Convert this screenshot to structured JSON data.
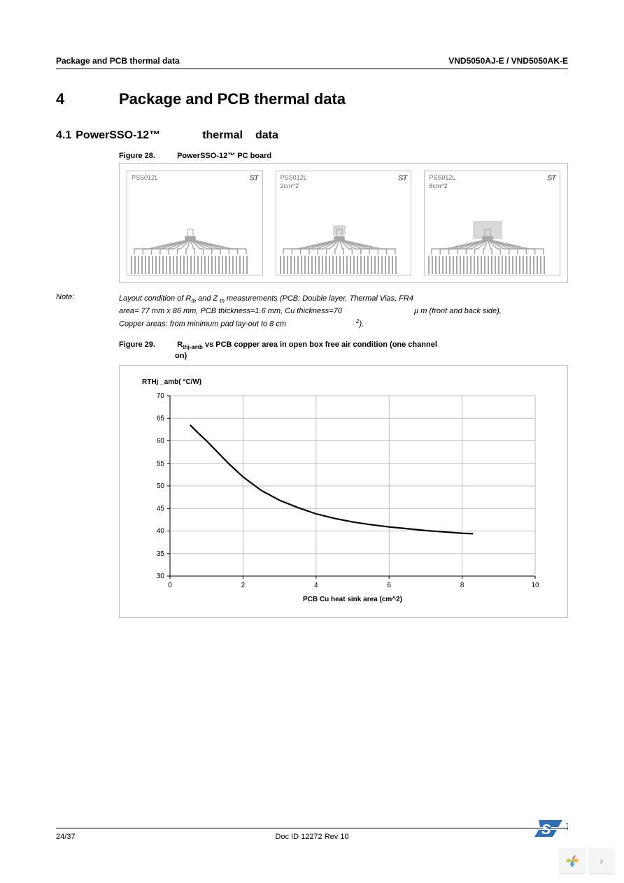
{
  "header": {
    "left": "Package and PCB thermal data",
    "right": "VND5050AJ-E / VND5050AK-E"
  },
  "section": {
    "num": "4",
    "title": "Package and PCB thermal data"
  },
  "subsection": {
    "num": "4.1",
    "part_a": "PowerSSO-12™",
    "part_b": "thermal",
    "part_c": "data"
  },
  "figure28": {
    "label_num": "Figure 28.",
    "label_title": "PowerSSO-12™ PC board",
    "boards": [
      {
        "name": "PSS012L",
        "area": "",
        "st": "ST",
        "pad_w": 0
      },
      {
        "name": "PSS012L",
        "area": "2cm^2",
        "st": "ST",
        "pad_w": 18
      },
      {
        "name": "PSS012L",
        "area": "8cm^2",
        "st": "ST",
        "pad_w": 42
      }
    ],
    "colors": {
      "border": "#bfbfbf",
      "trace": "#a8a8a8",
      "pad": "#d8d8d8"
    }
  },
  "note": {
    "label": "Note:",
    "l1a": "Layout condition of R",
    "l1b": "th",
    "l1c": " and Z ",
    "l1d": "th",
    "l1e": " measurements (PCB: Double layer, Thermal Vias, FR4",
    "l2a": "area= 77 mm x 86 mm, PCB thickness=1.6 mm, Cu thickness=70 ",
    "l2b": "µ m (front and back side),",
    "l3a": "Copper areas: from minimum pad lay-out to 8 cm",
    "l3b": "2",
    "l3c": ")."
  },
  "figure29": {
    "label_num": "Figure 29.",
    "label_a": "R",
    "label_sub": "thj-amb",
    "label_b": " vs PCB copper area in open box free air condition (one channel",
    "label_c": "on)",
    "chart": {
      "type": "line",
      "y_title": "RTHj _amb( °C/W)",
      "x_title": "PCB Cu heat sink area (cm^2)",
      "xlim": [
        0,
        10
      ],
      "xtick_step": 2,
      "ylim": [
        30,
        70
      ],
      "ytick_step": 5,
      "grid_color": "#bfbfbf",
      "axis_color": "#000000",
      "line_color": "#000000",
      "line_width": 2.2,
      "background": "#ffffff",
      "tick_fontsize": 10,
      "label_fontsize": 10,
      "points": [
        [
          0.55,
          63.5
        ],
        [
          0.8,
          61.5
        ],
        [
          1.0,
          60.0
        ],
        [
          1.3,
          57.5
        ],
        [
          1.6,
          55.0
        ],
        [
          2.0,
          52.0
        ],
        [
          2.5,
          49.0
        ],
        [
          3.0,
          46.8
        ],
        [
          3.5,
          45.2
        ],
        [
          4.0,
          43.8
        ],
        [
          4.5,
          42.8
        ],
        [
          5.0,
          42.0
        ],
        [
          5.5,
          41.4
        ],
        [
          6.0,
          40.9
        ],
        [
          6.5,
          40.5
        ],
        [
          7.0,
          40.1
        ],
        [
          7.5,
          39.8
        ],
        [
          8.0,
          39.5
        ],
        [
          8.3,
          39.4
        ]
      ]
    }
  },
  "footer": {
    "page": "24/37",
    "docid": "Doc ID 12272 Rev 10"
  },
  "stlogo": {
    "text": "ST",
    "color": "#2e6fb7"
  },
  "pager": {
    "arrow": "›"
  }
}
